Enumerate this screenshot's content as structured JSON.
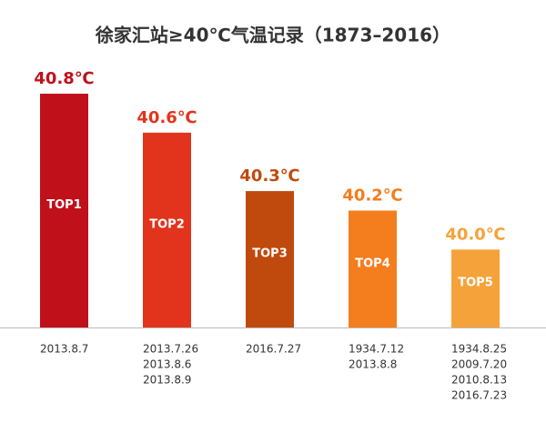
{
  "chart_data": {
    "type": "bar",
    "title": "徐家汇站≥40℃气温记录（1873–2016）",
    "categories": [
      [
        "2013.8.7"
      ],
      [
        "2013.7.26",
        "2013.8.6",
        "2013.8.9"
      ],
      [
        "2016.7.27"
      ],
      [
        "1934.7.12",
        "2013.8.8"
      ],
      [
        "1934.8.25",
        "2009.7.20",
        "2010.8.13",
        "2016.7.23"
      ]
    ],
    "values": [
      40.8,
      40.6,
      40.3,
      40.2,
      40.0
    ],
    "value_labels": [
      "40.8℃",
      "40.6℃",
      "40.3℃",
      "40.2℃",
      "40.0℃"
    ],
    "bar_labels": [
      "TOP1",
      "TOP2",
      "TOP3",
      "TOP4",
      "TOP5"
    ],
    "colors": [
      "#c0111b",
      "#e2341d",
      "#c04a0e",
      "#f47d1d",
      "#f6a23a"
    ],
    "ylim": [
      39.6,
      40.8
    ]
  }
}
